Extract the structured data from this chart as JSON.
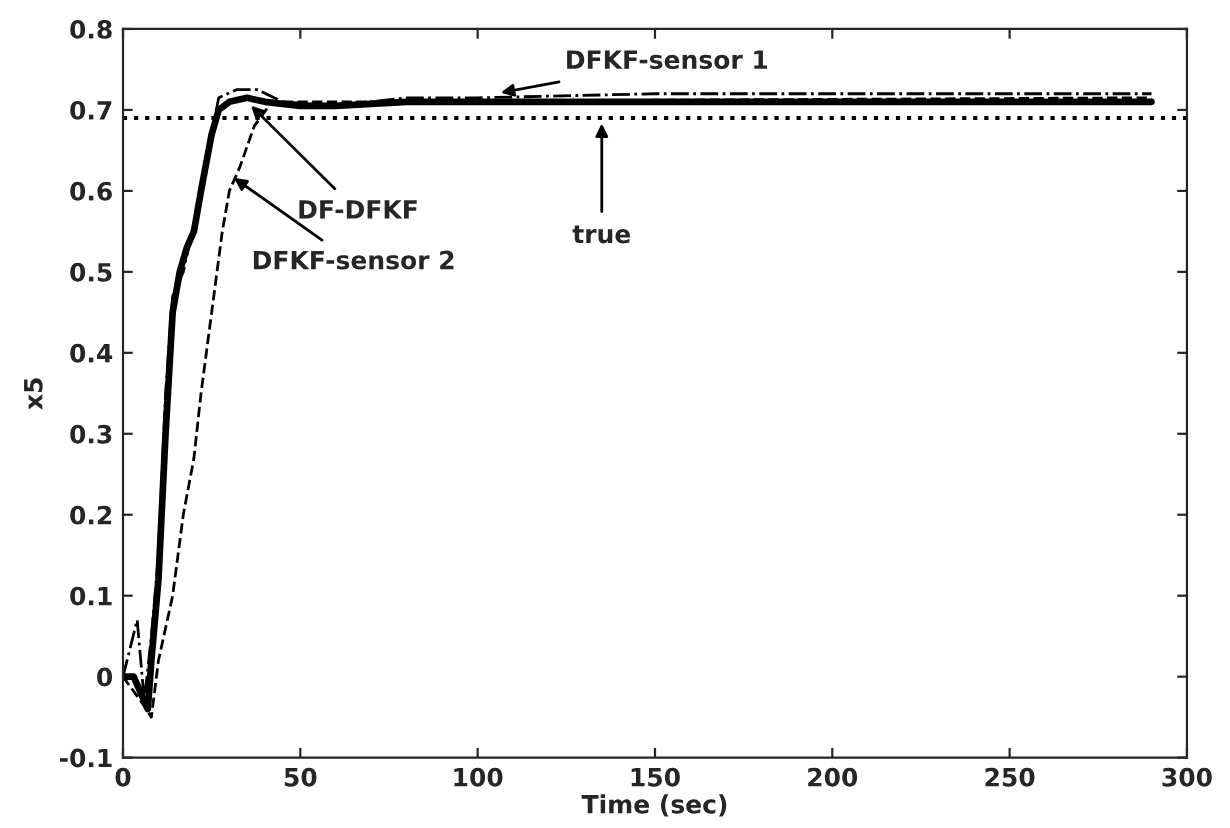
{
  "chart_data": {
    "type": "line",
    "xlabel": "Time (sec)",
    "ylabel": "x5",
    "xlim": [
      0,
      300
    ],
    "ylim": [
      -0.1,
      0.8
    ],
    "xticks": [
      0,
      50,
      100,
      150,
      200,
      250,
      300
    ],
    "yticks": [
      -0.1,
      0,
      0.1,
      0.2,
      0.3,
      0.4,
      0.5,
      0.6,
      0.7,
      0.8
    ],
    "grid": false,
    "legend": false,
    "marker": "none",
    "series": [
      {
        "color": "#000000",
        "line_style": "solid",
        "x": [
          0,
          3,
          5,
          7,
          8,
          10,
          12,
          14,
          16,
          18,
          20,
          22,
          25,
          27,
          30,
          35,
          40,
          50,
          60,
          80,
          100,
          150,
          200,
          290
        ],
        "values": [
          0,
          0,
          -0.02,
          -0.04,
          0.02,
          0.12,
          0.3,
          0.45,
          0.5,
          0.53,
          0.55,
          0.6,
          0.67,
          0.7,
          0.71,
          0.715,
          0.71,
          0.705,
          0.705,
          0.71,
          0.71,
          0.71,
          0.71,
          0.71
        ]
      },
      {
        "color": "#000000",
        "line_style": "dashdot",
        "x": [
          0,
          4,
          6,
          8,
          10,
          12,
          14,
          17,
          20,
          24,
          27,
          32,
          38,
          45,
          60,
          80,
          100,
          150,
          200,
          290
        ],
        "values": [
          0,
          0.07,
          -0.03,
          0.05,
          0.15,
          0.35,
          0.47,
          0.5,
          0.56,
          0.65,
          0.715,
          0.725,
          0.725,
          0.71,
          0.705,
          0.715,
          0.715,
          0.72,
          0.72,
          0.72
        ]
      },
      {
        "color": "#000000",
        "line_style": "dashed",
        "x": [
          0,
          5,
          8,
          10,
          14,
          17,
          20,
          22,
          25,
          28,
          30,
          33,
          37,
          42,
          50,
          80,
          150,
          290
        ],
        "values": [
          0,
          -0.03,
          -0.05,
          0.02,
          0.1,
          0.2,
          0.27,
          0.35,
          0.45,
          0.55,
          0.6,
          0.63,
          0.68,
          0.71,
          0.71,
          0.71,
          0.712,
          0.715
        ]
      }
    ],
    "ref_lines": [
      {
        "axis": "y",
        "value": 0.69,
        "label": "true",
        "line_style": "dotted",
        "color": "#000000"
      }
    ],
    "annotations": [
      {
        "text": "DFKF-sensor 1",
        "x": 105,
        "y": 0.72
      },
      {
        "text": "DF-DFKF",
        "x": 35,
        "y": 0.71
      },
      {
        "text": "DFKF-sensor 2",
        "x": 30,
        "y": 0.62
      }
    ]
  }
}
